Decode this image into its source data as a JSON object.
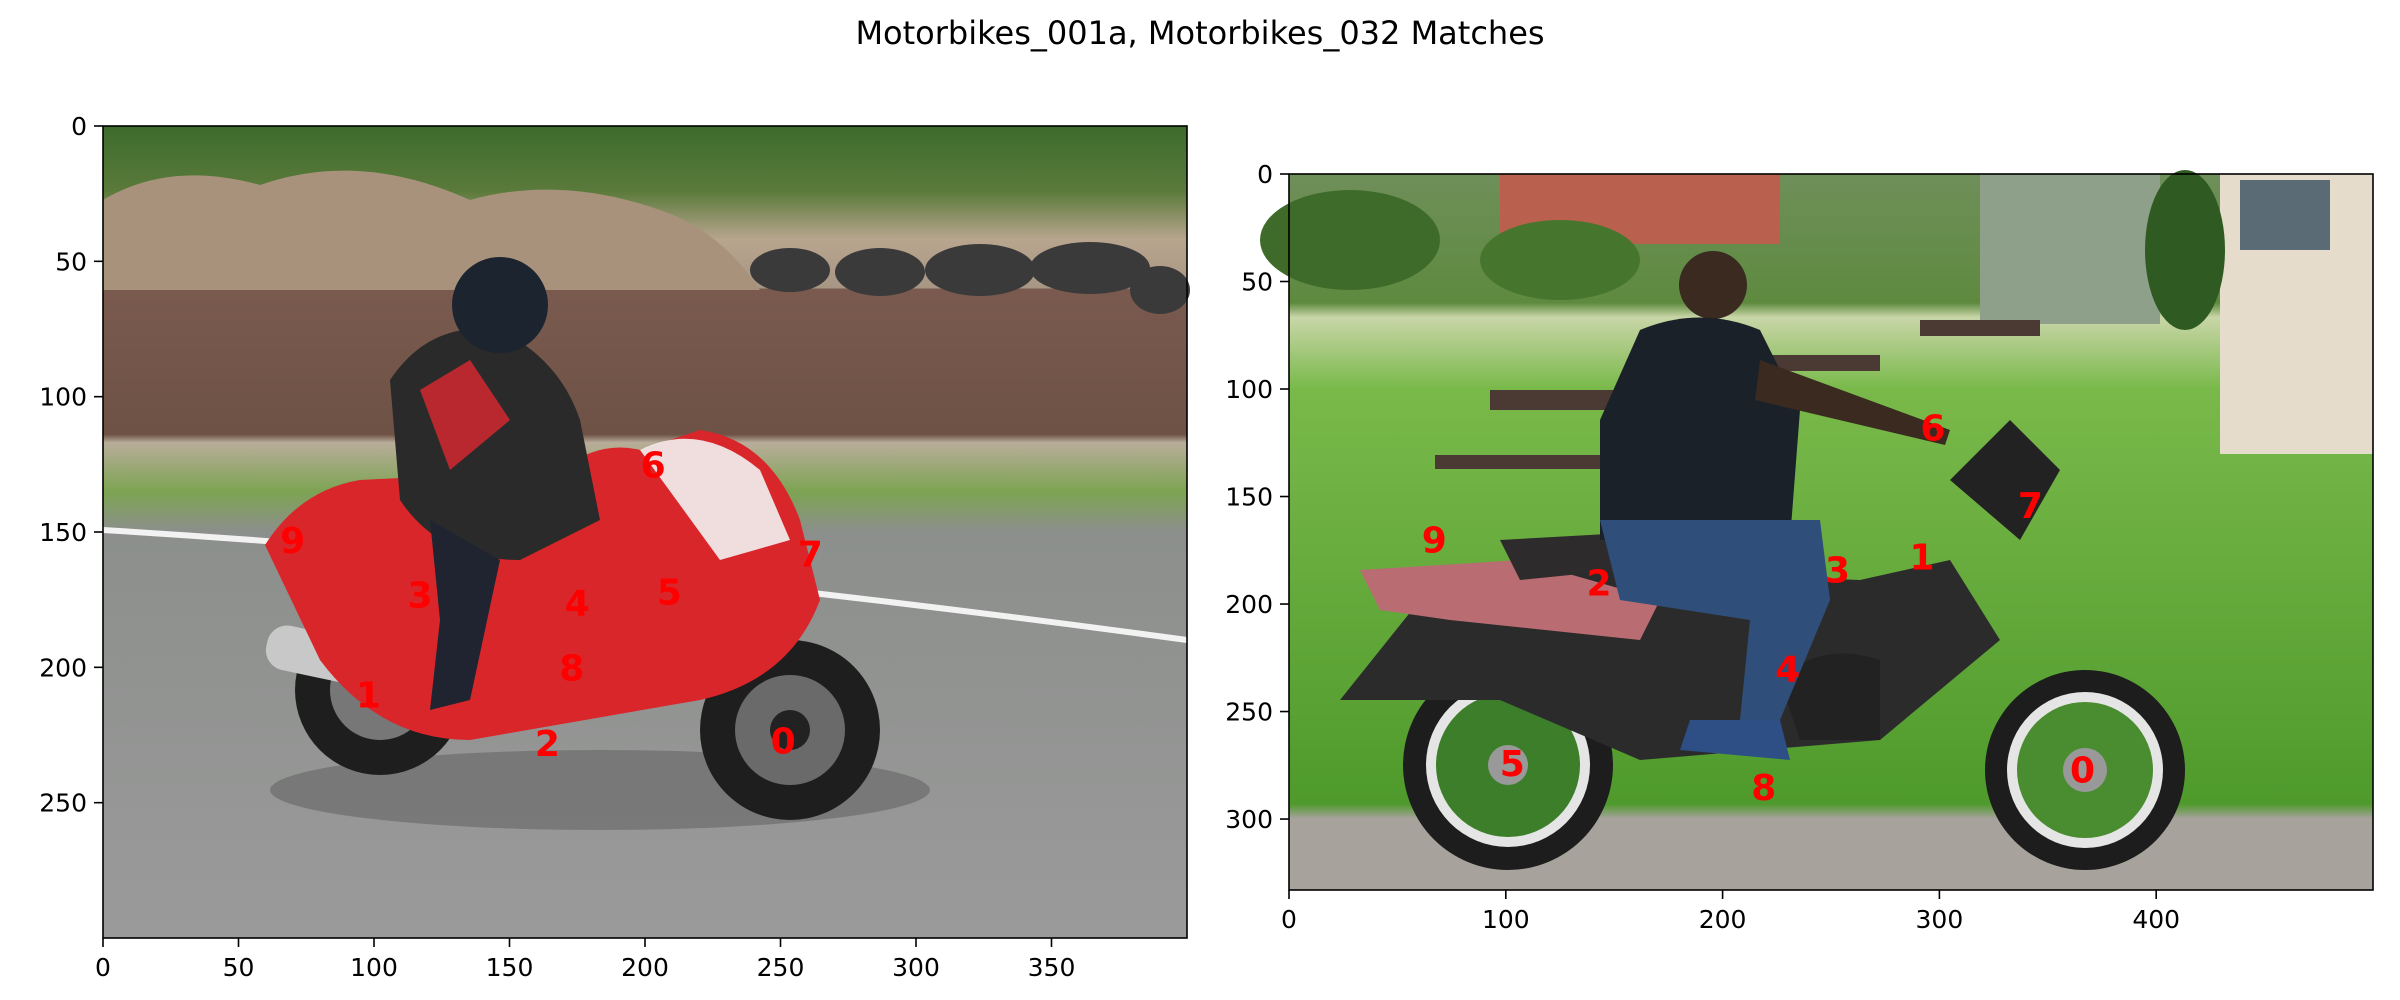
{
  "figure": {
    "title": "Motorbikes_001a, Motorbikes_032 Matches",
    "label_color": "#ff0000"
  },
  "chart_data": [
    {
      "type": "scatter",
      "title": "",
      "xlabel": "",
      "ylabel": "",
      "xlim": [
        0,
        400
      ],
      "ylim": [
        300,
        0
      ],
      "xticks": [
        0,
        50,
        100,
        150,
        200,
        250,
        300,
        350
      ],
      "yticks": [
        0,
        50,
        100,
        150,
        200,
        250
      ],
      "grid": false,
      "background": "photo: red sport motorbike with rider on a race track",
      "points": [
        {
          "label": "0",
          "x": 251,
          "y": 227
        },
        {
          "label": "1",
          "x": 98,
          "y": 210
        },
        {
          "label": "2",
          "x": 164,
          "y": 228
        },
        {
          "label": "3",
          "x": 117,
          "y": 173
        },
        {
          "label": "4",
          "x": 175,
          "y": 176
        },
        {
          "label": "5",
          "x": 209,
          "y": 172
        },
        {
          "label": "6",
          "x": 203,
          "y": 125
        },
        {
          "label": "7",
          "x": 261,
          "y": 158
        },
        {
          "label": "8",
          "x": 173,
          "y": 200
        },
        {
          "label": "9",
          "x": 70,
          "y": 153
        }
      ]
    },
    {
      "type": "scatter",
      "title": "",
      "xlabel": "",
      "ylabel": "",
      "xlim": [
        0,
        500
      ],
      "ylim": [
        333,
        0
      ],
      "xticks": [
        0,
        100,
        200,
        300,
        400
      ],
      "yticks": [
        0,
        50,
        100,
        150,
        200,
        250,
        300
      ],
      "grid": false,
      "background": "photo: person seated on a black and grey motorbike on a lawn",
      "points": [
        {
          "label": "0",
          "x": 366,
          "y": 277
        },
        {
          "label": "1",
          "x": 292,
          "y": 178
        },
        {
          "label": "2",
          "x": 143,
          "y": 190
        },
        {
          "label": "3",
          "x": 253,
          "y": 184
        },
        {
          "label": "4",
          "x": 230,
          "y": 230
        },
        {
          "label": "5",
          "x": 103,
          "y": 274
        },
        {
          "label": "6",
          "x": 297,
          "y": 118
        },
        {
          "label": "7",
          "x": 342,
          "y": 154
        },
        {
          "label": "8",
          "x": 219,
          "y": 285
        },
        {
          "label": "9",
          "x": 67,
          "y": 170
        }
      ]
    }
  ]
}
